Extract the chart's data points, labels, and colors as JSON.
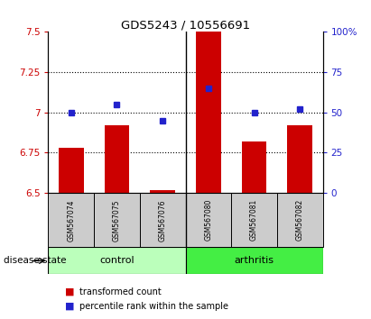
{
  "title": "GDS5243 / 10556691",
  "samples": [
    "GSM567074",
    "GSM567075",
    "GSM567076",
    "GSM567080",
    "GSM567081",
    "GSM567082"
  ],
  "groups": [
    "control",
    "control",
    "control",
    "arthritis",
    "arthritis",
    "arthritis"
  ],
  "red_values": [
    6.78,
    6.92,
    6.515,
    7.5,
    6.82,
    6.92
  ],
  "blue_values": [
    50,
    55,
    45,
    65,
    50,
    52
  ],
  "ylim_left": [
    6.5,
    7.5
  ],
  "ylim_right": [
    0,
    100
  ],
  "yticks_left": [
    6.5,
    6.75,
    7.0,
    7.25,
    7.5
  ],
  "ytick_labels_left": [
    "6.5",
    "6.75",
    "7",
    "7.25",
    "7.5"
  ],
  "yticks_right": [
    0,
    25,
    50,
    75,
    100
  ],
  "ytick_labels_right": [
    "0",
    "25",
    "50",
    "75",
    "100%"
  ],
  "hlines": [
    6.75,
    7.0,
    7.25
  ],
  "bar_color": "#cc0000",
  "dot_color": "#2222cc",
  "control_color": "#bbffbb",
  "arthritis_color": "#44ee44",
  "sample_box_color": "#cccccc",
  "legend_items": [
    "transformed count",
    "percentile rank within the sample"
  ],
  "group_label": "disease state",
  "bar_width": 0.55
}
